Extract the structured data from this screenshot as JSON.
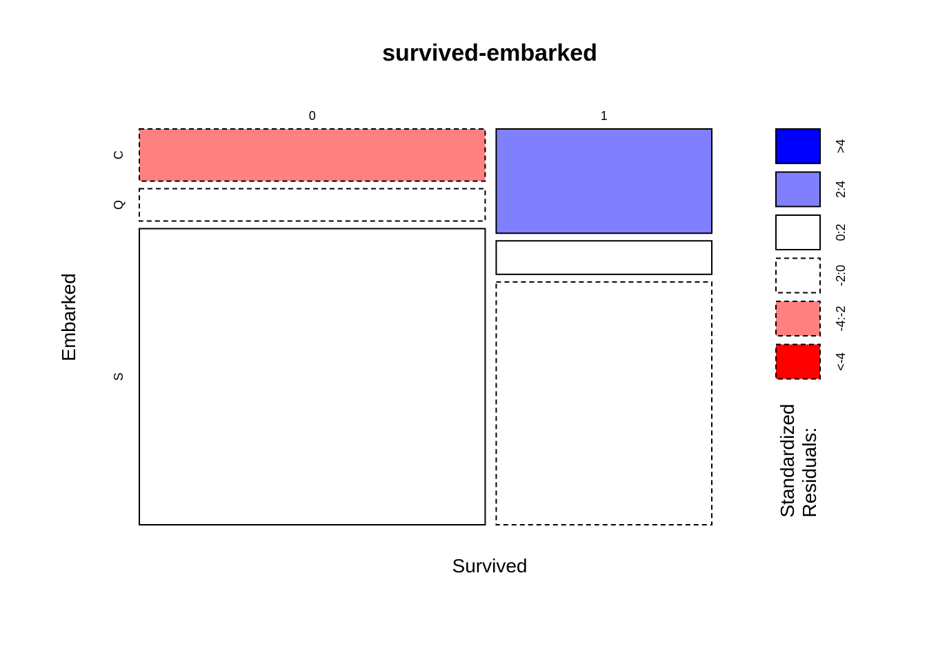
{
  "chart_data": {
    "type": "mosaic",
    "title": "survived-embarked",
    "xlabel": "Survived",
    "ylabel": "Embarked",
    "x_levels": [
      "0",
      "1"
    ],
    "y_levels": [
      "C",
      "Q",
      "S"
    ],
    "x_proportions": [
      0.616,
      0.384
    ],
    "cells": [
      {
        "x": "0",
        "y": "C",
        "share": 0.137,
        "residual_bin": "-4:-2"
      },
      {
        "x": "0",
        "y": "Q",
        "share": 0.085,
        "residual_bin": "-2:0"
      },
      {
        "x": "0",
        "y": "S",
        "share": 0.778,
        "residual_bin": "0:2"
      },
      {
        "x": "1",
        "y": "C",
        "share": 0.274,
        "residual_bin": "2:4"
      },
      {
        "x": "1",
        "y": "Q",
        "share": 0.088,
        "residual_bin": "0:2"
      },
      {
        "x": "1",
        "y": "S",
        "share": 0.638,
        "residual_bin": "-2:0"
      }
    ],
    "legend": {
      "title_line1": "Standardized",
      "title_line2": "Residuals:",
      "bins": [
        {
          "label": ">4",
          "color": "#0000ff",
          "dashed": false
        },
        {
          "label": "2:4",
          "color": "#8080ff",
          "dashed": false
        },
        {
          "label": "0:2",
          "color": "#ffffff",
          "dashed": false
        },
        {
          "label": "-2:0",
          "color": "#ffffff",
          "dashed": true
        },
        {
          "label": "-4:-2",
          "color": "#ff8080",
          "dashed": true
        },
        {
          "label": "<-4",
          "color": "#ff0000",
          "dashed": true
        }
      ]
    }
  }
}
